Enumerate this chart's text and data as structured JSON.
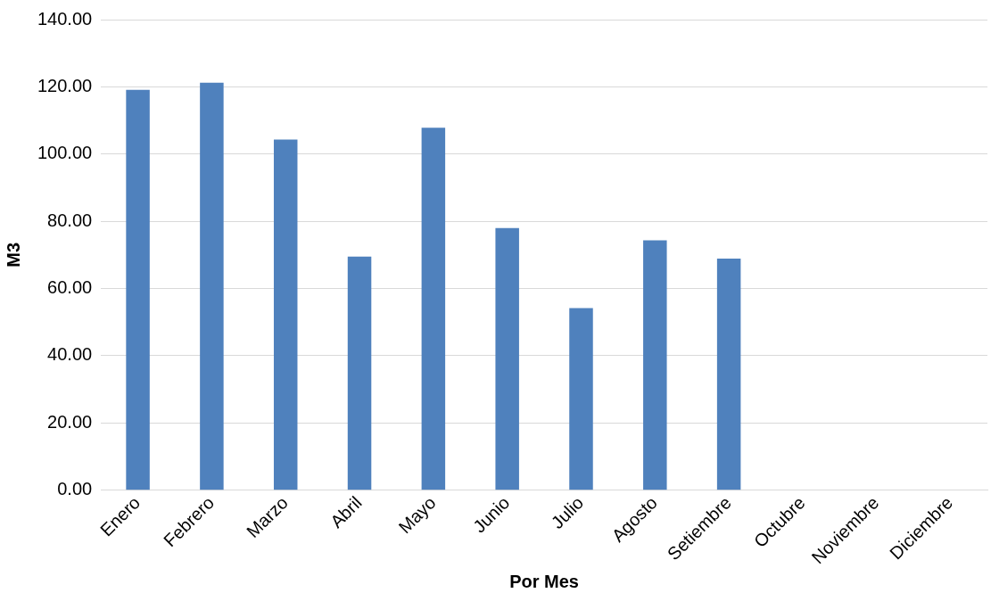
{
  "chart_data": {
    "type": "bar",
    "xlabel": "Por Mes",
    "ylabel": "M3",
    "categories": [
      "Enero",
      "Febrero",
      "Marzo",
      "Abril",
      "Mayo",
      "Junio",
      "Julio",
      "Agosto",
      "Setiembre",
      "Octubre",
      "Noviembre",
      "Diciembre"
    ],
    "values": [
      119.1,
      121.2,
      104.3,
      69.5,
      107.8,
      78.0,
      54.2,
      74.3,
      68.9,
      null,
      null,
      null
    ],
    "color": "#4f81bd",
    "ylim": [
      0,
      140
    ],
    "yticks": [
      {
        "value": 0,
        "label": "0.00"
      },
      {
        "value": 20,
        "label": "20.00"
      },
      {
        "value": 40,
        "label": "40.00"
      },
      {
        "value": 60,
        "label": "60.00"
      },
      {
        "value": 80,
        "label": "80.00"
      },
      {
        "value": 100,
        "label": "100.00"
      },
      {
        "value": 120,
        "label": "120.00"
      },
      {
        "value": 140,
        "label": "140.00"
      }
    ],
    "grid": "y",
    "legend": false
  }
}
